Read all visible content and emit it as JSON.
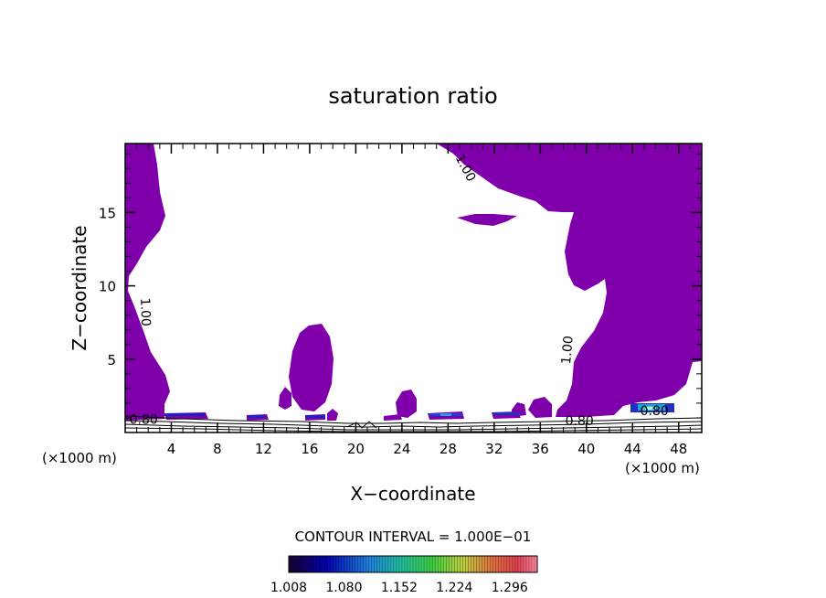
{
  "chart_data": {
    "type": "contour",
    "title": "saturation ratio",
    "xlabel": "X−coordinate",
    "ylabel": "Z−coordinate",
    "x_unit_left": "(×1000 m)",
    "x_unit_right": "(×1000 m)",
    "xlim": [
      0,
      50
    ],
    "ylim": [
      0,
      19.7
    ],
    "x_ticks": [
      4,
      8,
      12,
      16,
      20,
      24,
      28,
      32,
      36,
      40,
      44,
      48
    ],
    "y_ticks": [
      5,
      10,
      15
    ],
    "x_tick_labels": [
      "4",
      "8",
      "12",
      "16",
      "20",
      "24",
      "28",
      "32",
      "36",
      "40",
      "44",
      "48"
    ],
    "y_tick_labels": [
      "5",
      "10",
      "15"
    ],
    "contour_labels": [
      {
        "text": "1.00",
        "x": 1.4,
        "z": 8.2,
        "angle": 88
      },
      {
        "text": "1.00",
        "x": 29.2,
        "z": 17.9,
        "angle": 62
      },
      {
        "text": "1.00",
        "x": 38.7,
        "z": 5.6,
        "angle": -85
      },
      {
        "text": "0.80",
        "x": 1.6,
        "z": 0.6,
        "angle": 0
      },
      {
        "text": "0.80",
        "x": 39.4,
        "z": 0.5,
        "angle": 0
      },
      {
        "text": "0.80",
        "x": 45.9,
        "z": 1.2,
        "angle": 0
      }
    ],
    "fill_threshold": 1.0,
    "fill_color": "#7f00aa",
    "contour_interval_text": "CONTOUR INTERVAL = 1.000E−01",
    "colorbar": {
      "min": 1.008,
      "max": 1.332,
      "tick_labels": [
        "1.008",
        "1.080",
        "1.152",
        "1.224",
        "1.296"
      ],
      "colors": [
        "#200040",
        "#0000c0",
        "#00c0c0",
        "#40e040",
        "#e0e040",
        "#e04040",
        "#ff8080"
      ]
    }
  }
}
